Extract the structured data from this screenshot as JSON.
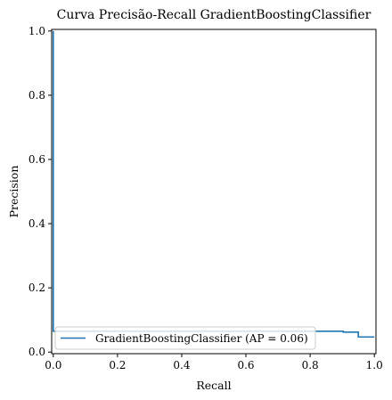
{
  "chart_data": {
    "type": "line",
    "title": "Curva Precisão-Recall GradientBoostingClassifier",
    "xlabel": "Recall",
    "ylabel": "Precision",
    "xlim": [
      -0.005,
      1.005
    ],
    "ylim": [
      -0.005,
      1.005
    ],
    "xticks": [
      "0.0",
      "0.2",
      "0.4",
      "0.6",
      "0.8",
      "1.0"
    ],
    "yticks": [
      "0.0",
      "0.2",
      "0.4",
      "0.6",
      "0.8",
      "1.0"
    ],
    "grid": false,
    "legend_position": "lower-left",
    "series": [
      {
        "name": "GradientBoostingClassifier (AP = 0.06)",
        "color": "#1f77b4",
        "drawstyle": "steps",
        "x": [
          0.0,
          0.0,
          0.003,
          0.003,
          0.903,
          0.903,
          0.95,
          0.95,
          1.0
        ],
        "y": [
          1.0,
          0.065,
          0.065,
          0.065,
          0.065,
          0.062,
          0.062,
          0.047,
          0.047
        ]
      }
    ]
  }
}
